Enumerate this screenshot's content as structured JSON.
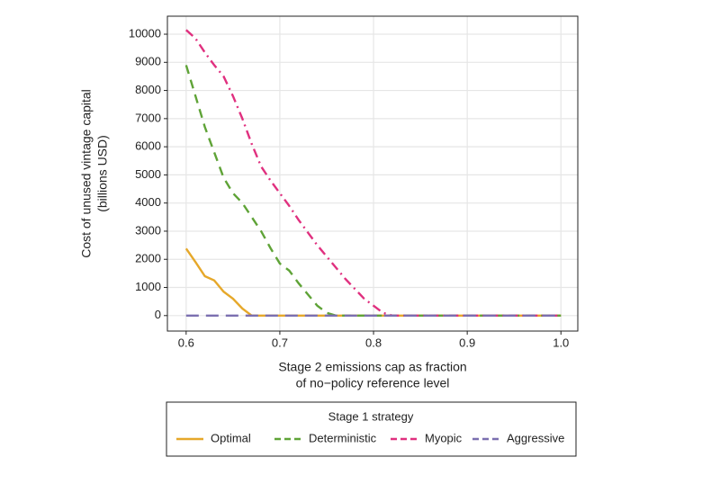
{
  "chart_data": {
    "type": "line",
    "xlabel": [
      "Stage 2 emissions cap as fraction",
      "of no−policy reference level"
    ],
    "ylabel": [
      "Cost of unused vintage capital",
      "(billions USD)"
    ],
    "legend_title": "Stage 1 strategy",
    "legend": "bottom",
    "grid": true,
    "x": [
      0.6,
      0.61,
      0.62,
      0.63,
      0.64,
      0.65,
      0.66,
      0.67,
      0.68,
      0.69,
      0.7,
      0.71,
      0.72,
      0.73,
      0.74,
      0.75,
      0.76,
      0.77,
      0.78,
      0.79,
      0.8,
      0.81,
      0.82,
      0.83,
      0.84,
      0.85,
      0.86,
      0.87,
      0.88,
      0.89,
      0.9,
      0.91,
      0.92,
      0.93,
      0.94,
      0.95,
      0.96,
      0.97,
      0.98,
      0.99,
      1
    ],
    "xlim": [
      0.58,
      1.018
    ],
    "xticks": [
      0.6,
      0.7,
      0.8,
      0.9,
      {
        "value": 1,
        "label": "1.0"
      }
    ],
    "ylim": [
      -550,
      10640
    ],
    "yticks": [
      0,
      1000,
      2000,
      3000,
      4000,
      5000,
      6000,
      7000,
      8000,
      9000,
      10000
    ],
    "series": [
      {
        "name": "Optimal",
        "color": "#e6a82a",
        "dash": "none",
        "values": [
          2380,
          1900,
          1400,
          1250,
          850,
          600,
          250,
          0,
          0,
          0,
          0,
          0,
          0,
          0,
          0,
          0,
          0,
          0,
          0,
          0,
          0,
          0,
          0,
          0,
          0,
          0,
          0,
          0,
          0,
          0,
          0,
          0,
          0,
          0,
          0,
          0,
          0,
          0,
          0,
          0,
          0
        ]
      },
      {
        "name": "Deterministic",
        "color": "#5fa337",
        "dash": "10,7",
        "values": [
          8900,
          7800,
          6700,
          5800,
          4900,
          4350,
          4000,
          3500,
          3000,
          2400,
          1850,
          1600,
          1150,
          750,
          350,
          100,
          0,
          0,
          0,
          0,
          0,
          0,
          0,
          0,
          0,
          0,
          0,
          0,
          0,
          0,
          0,
          0,
          0,
          0,
          0,
          0,
          0,
          0,
          0,
          0,
          0
        ]
      },
      {
        "name": "Myopic",
        "color": "#e0307f",
        "dash": "10,5,2,5",
        "values": [
          10150,
          9850,
          9350,
          8900,
          8500,
          7800,
          7000,
          6100,
          5300,
          4800,
          4350,
          3900,
          3400,
          2950,
          2500,
          2100,
          1700,
          1300,
          950,
          600,
          350,
          100,
          0,
          0,
          0,
          0,
          0,
          0,
          0,
          0,
          0,
          0,
          0,
          0,
          0,
          0,
          0,
          0,
          0,
          0,
          0
        ]
      },
      {
        "name": "Aggressive",
        "color": "#7b6fb0",
        "dash": "14,8",
        "values": [
          0,
          0,
          0,
          0,
          0,
          0,
          0,
          0,
          0,
          0,
          0,
          0,
          0,
          0,
          0,
          0,
          0,
          0,
          0,
          0,
          0,
          0,
          0,
          0,
          0,
          0,
          0,
          0,
          0,
          0,
          0,
          0,
          0,
          0,
          0,
          0,
          0,
          0,
          0,
          0,
          0
        ]
      }
    ]
  }
}
